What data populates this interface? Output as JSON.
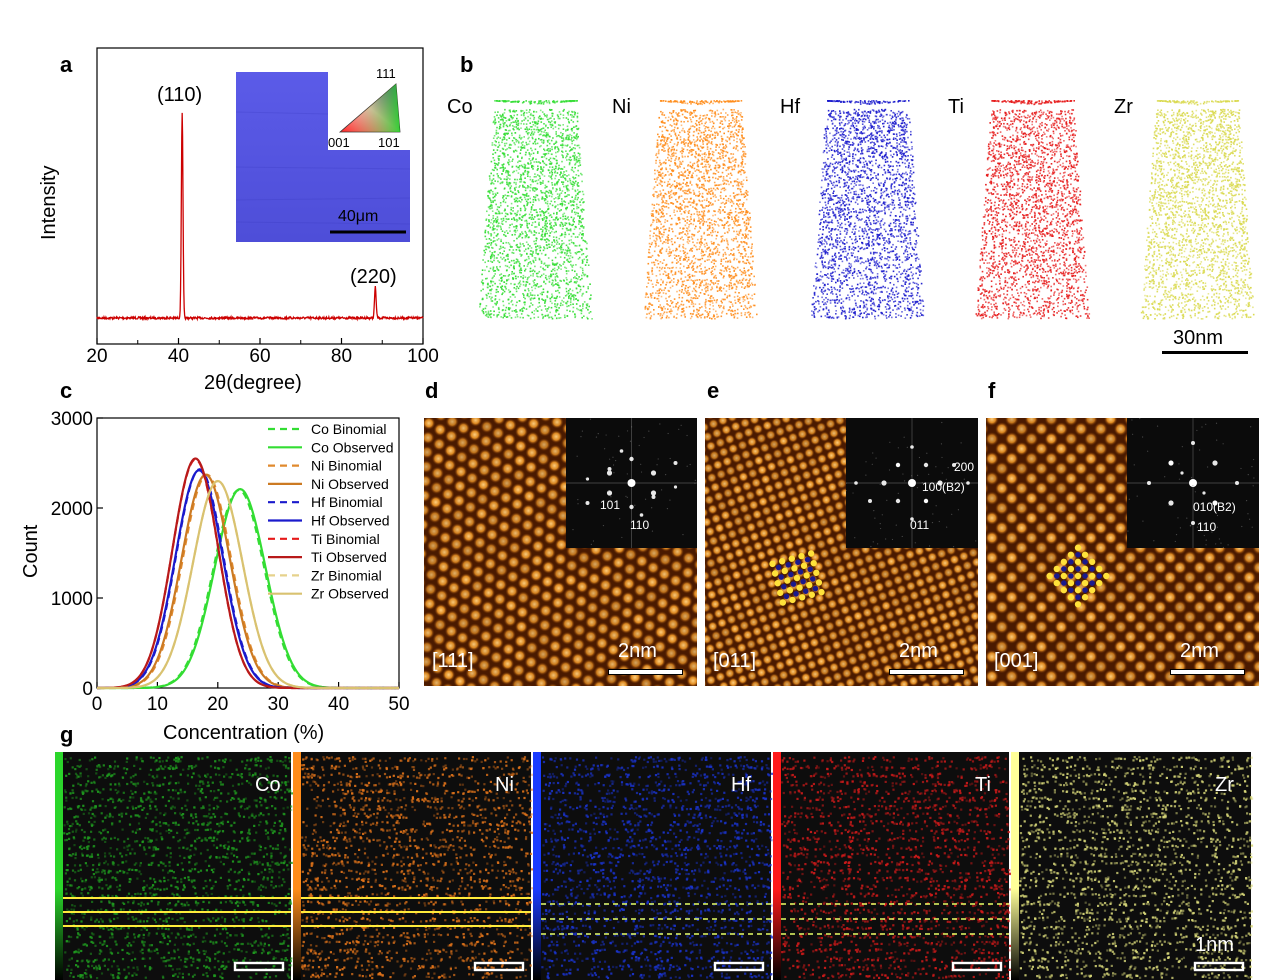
{
  "panel_labels": {
    "a": "a",
    "b": "b",
    "c": "c",
    "d": "d",
    "e": "e",
    "f": "f",
    "g": "g"
  },
  "panel_a": {
    "ylabel": "Intensity",
    "xlabel": "2θ(degree)",
    "peak_labels": [
      "(110)",
      "(220)"
    ],
    "inset": {
      "scale": "40μm",
      "triangle_labels": {
        "top": "111",
        "left": "001",
        "right": "101"
      },
      "fill_color": "#5a5ae6"
    }
  },
  "panel_b": {
    "elements": [
      "Co",
      "Ni",
      "Hf",
      "Ti",
      "Zr"
    ],
    "colors": [
      "#33dd33",
      "#ff8c1a",
      "#1a1acc",
      "#e61a1a",
      "#d9d94d"
    ],
    "scale": "30nm"
  },
  "panel_c": {
    "legend": [
      "Co Binomial",
      "Co Observed",
      "Ni Binomial",
      "Ni Observed",
      "Hf Binomial",
      "Hf Observed",
      "Ti Binomial",
      "Ti Observed",
      "Zr Binomial",
      "Zr Observed"
    ]
  },
  "panel_def": {
    "zones": [
      "[111]",
      "[011]",
      "[001]"
    ],
    "scale": "2nm",
    "fft_labels": {
      "d": [
        "101",
        "110"
      ],
      "e": [
        "200",
        "100(B2)",
        "011"
      ],
      "f": [
        "010(B2)",
        "110"
      ]
    }
  },
  "panel_g": {
    "elements": [
      "Co",
      "Ni",
      "Hf",
      "Ti",
      "Zr"
    ],
    "colors": [
      "#1f9a1f",
      "#e0731a",
      "#1a33cc",
      "#cc1a1a",
      "#d9d97a"
    ],
    "scale": "1nm"
  },
  "chart_data": [
    {
      "type": "line",
      "title": "",
      "xlabel": "2θ(degree)",
      "ylabel": "Intensity",
      "xlim": [
        20,
        100
      ],
      "xticks": [
        20,
        40,
        60,
        80,
        100
      ],
      "grid": false,
      "peaks": [
        {
          "x": 40.9,
          "label": "(110)",
          "relative_intensity": 1.0
        },
        {
          "x": 88.3,
          "label": "(220)",
          "relative_intensity": 0.15
        }
      ],
      "color": "#cc0000"
    },
    {
      "type": "line",
      "title": "",
      "xlabel": "Concentration (%)",
      "ylabel": "Count",
      "xlim": [
        0,
        50
      ],
      "ylim": [
        0,
        3000
      ],
      "xticks": [
        0,
        10,
        20,
        30,
        40,
        50
      ],
      "yticks": [
        0,
        1000,
        2000,
        3000
      ],
      "legend_position": "top-right",
      "grid": false,
      "series": [
        {
          "name": "Co Binomial",
          "style": "dashed",
          "color": "#33dd33",
          "mean": 23.5,
          "sd": 4.2,
          "peak": 2200
        },
        {
          "name": "Co Observed",
          "style": "solid",
          "color": "#33dd33",
          "mean": 23.7,
          "sd": 4.2,
          "peak": 2210
        },
        {
          "name": "Ni Binomial",
          "style": "dashed",
          "color": "#e08a2e",
          "mean": 18.2,
          "sd": 4.0,
          "peak": 2370
        },
        {
          "name": "Ni Observed",
          "style": "solid",
          "color": "#cc7a22",
          "mean": 18.0,
          "sd": 4.0,
          "peak": 2370
        },
        {
          "name": "Hf Binomial",
          "style": "dashed",
          "color": "#1a1acc",
          "mean": 17.0,
          "sd": 3.9,
          "peak": 2430
        },
        {
          "name": "Hf Observed",
          "style": "solid",
          "color": "#1a1acc",
          "mean": 16.9,
          "sd": 3.9,
          "peak": 2420
        },
        {
          "name": "Ti Binomial",
          "style": "dashed",
          "color": "#e61a1a",
          "mean": 16.3,
          "sd": 3.8,
          "peak": 2540
        },
        {
          "name": "Ti Observed",
          "style": "solid",
          "color": "#b81a1a",
          "mean": 16.3,
          "sd": 3.8,
          "peak": 2550
        },
        {
          "name": "Zr Binomial",
          "style": "dashed",
          "color": "#e6d28c",
          "mean": 20.0,
          "sd": 4.1,
          "peak": 2300
        },
        {
          "name": "Zr Observed",
          "style": "solid",
          "color": "#d9c270",
          "mean": 20.0,
          "sd": 4.1,
          "peak": 2300
        }
      ]
    }
  ]
}
